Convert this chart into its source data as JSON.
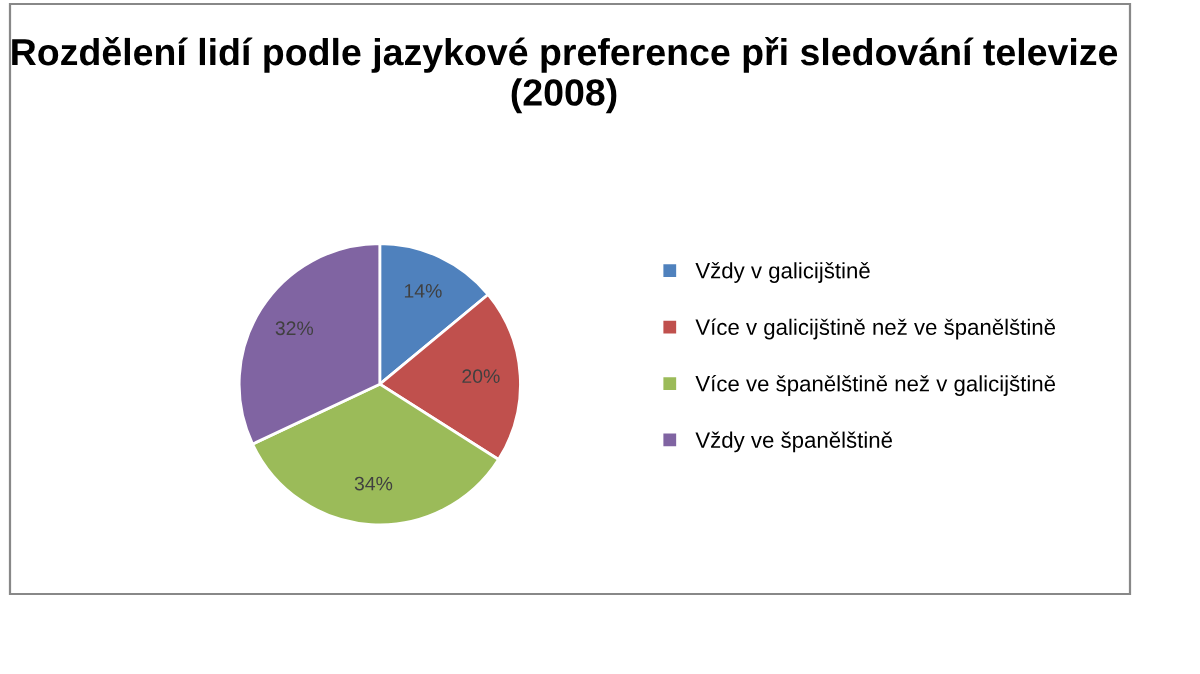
{
  "chart_data": {
    "type": "pie",
    "title": "Rozdělení lidí podle jazykové preference při sledování televize (2008)",
    "categories": [
      "Vždy v galicijštině",
      "Více v galicijštině než ve španělštině",
      "Více ve španělštině než v galicijštině",
      "Vždy ve španělštině"
    ],
    "values": [
      14,
      20,
      34,
      32
    ],
    "colors": [
      "#4f81bd",
      "#c0504d",
      "#9bbb59",
      "#8064a2"
    ],
    "value_labels": [
      "14%",
      "20%",
      "34%",
      "32%"
    ],
    "legend": "right"
  }
}
